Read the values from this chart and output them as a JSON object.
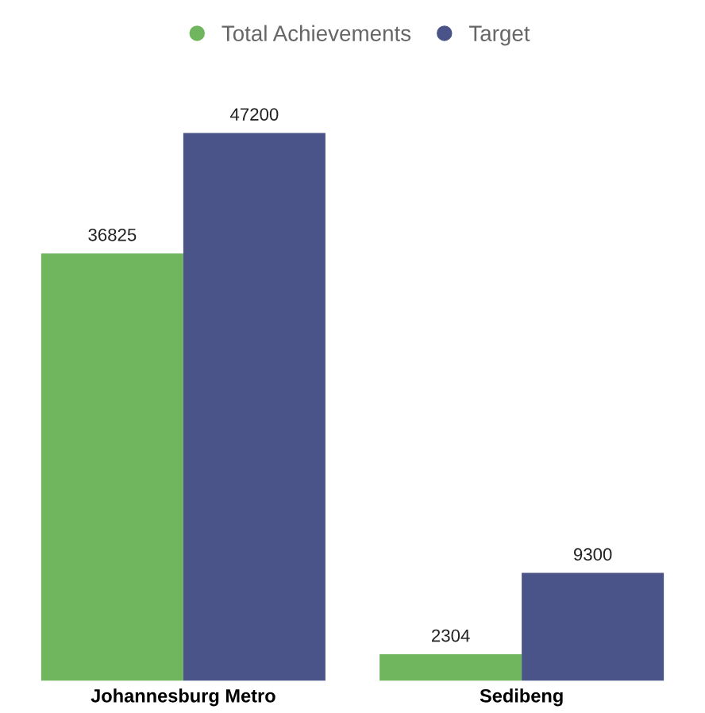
{
  "chart_data": {
    "type": "bar",
    "categories": [
      "Johannesburg Metro",
      "Sedibeng"
    ],
    "series": [
      {
        "name": "Total Achievements",
        "color": "#70b65e",
        "values": [
          36825,
          2304
        ]
      },
      {
        "name": "Target",
        "color": "#4a5488",
        "values": [
          47200,
          9300
        ]
      }
    ],
    "data_labels": true,
    "legend": "top",
    "grid": false
  }
}
